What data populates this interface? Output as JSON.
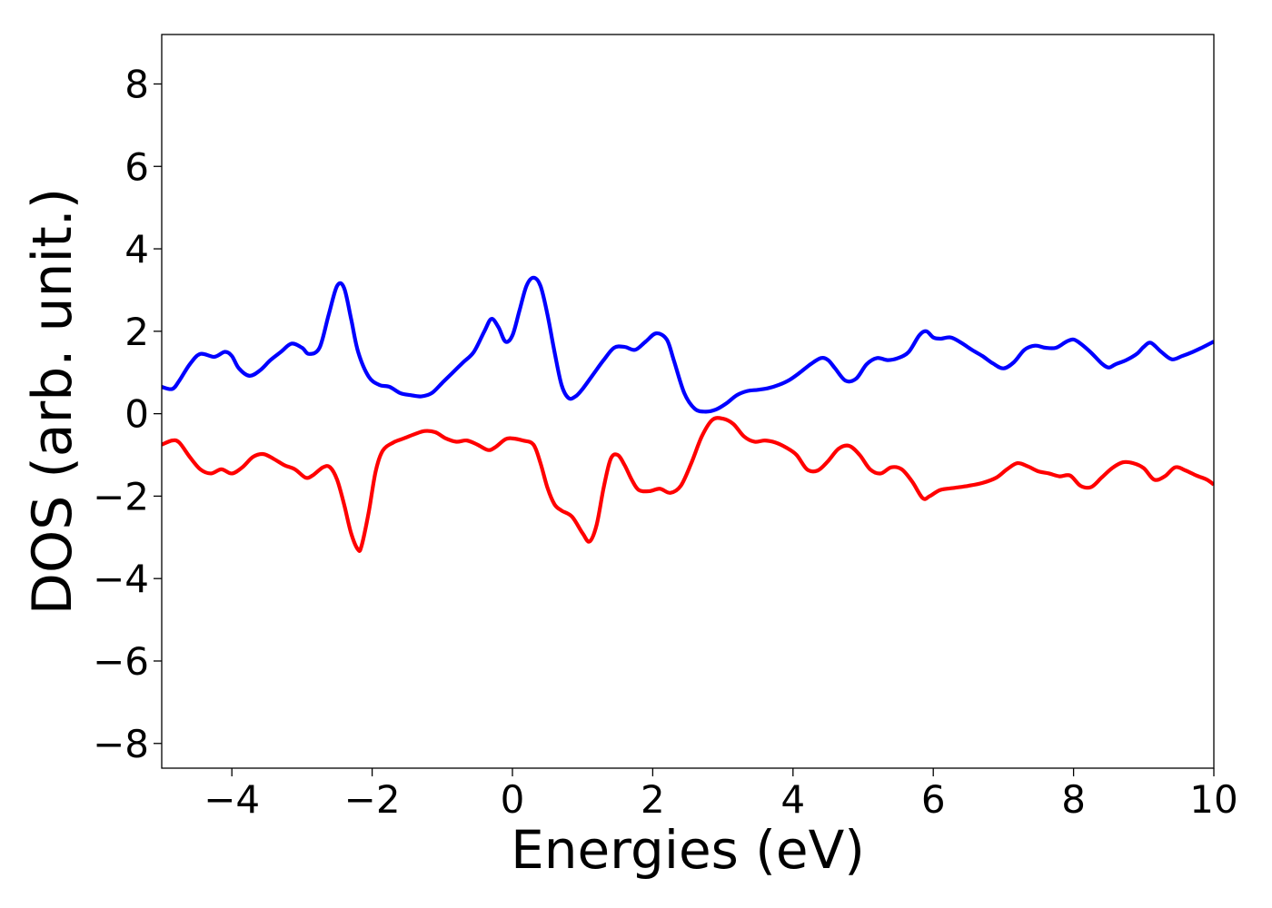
{
  "chart_data": {
    "type": "line",
    "xlabel": "Energies (eV)",
    "ylabel": "DOS (arb. unit.)",
    "xlim": [
      -5,
      10
    ],
    "ylim": [
      -8.6,
      9.2
    ],
    "xticks": [
      -4,
      -2,
      0,
      2,
      4,
      6,
      8,
      10
    ],
    "xtick_labels": [
      "−4",
      "−2",
      "0",
      "2",
      "4",
      "6",
      "8",
      "10"
    ],
    "yticks": [
      -8,
      -6,
      -4,
      -2,
      0,
      2,
      4,
      6,
      8
    ],
    "ytick_labels": [
      "−8",
      "−6",
      "−4",
      "−2",
      "0",
      "2",
      "4",
      "6",
      "8"
    ],
    "grid": false,
    "legend": "none",
    "series": [
      {
        "color": "#0000ff",
        "x": [
          -5.0,
          -4.85,
          -4.75,
          -4.6,
          -4.45,
          -4.25,
          -4.1,
          -4.0,
          -3.9,
          -3.75,
          -3.6,
          -3.45,
          -3.3,
          -3.15,
          -3.0,
          -2.9,
          -2.75,
          -2.62,
          -2.5,
          -2.4,
          -2.3,
          -2.2,
          -2.05,
          -1.9,
          -1.75,
          -1.6,
          -1.45,
          -1.3,
          -1.15,
          -1.0,
          -0.85,
          -0.7,
          -0.55,
          -0.4,
          -0.3,
          -0.2,
          -0.1,
          0.0,
          0.1,
          0.2,
          0.3,
          0.4,
          0.5,
          0.6,
          0.7,
          0.8,
          0.9,
          1.0,
          1.15,
          1.3,
          1.45,
          1.6,
          1.75,
          1.9,
          2.05,
          2.2,
          2.3,
          2.45,
          2.6,
          2.75,
          2.9,
          3.05,
          3.2,
          3.35,
          3.5,
          3.65,
          3.8,
          3.95,
          4.1,
          4.25,
          4.4,
          4.5,
          4.6,
          4.75,
          4.9,
          5.05,
          5.2,
          5.35,
          5.5,
          5.65,
          5.8,
          5.9,
          6.0,
          6.1,
          6.25,
          6.4,
          6.55,
          6.7,
          6.85,
          7.0,
          7.15,
          7.3,
          7.45,
          7.6,
          7.75,
          7.9,
          8.0,
          8.1,
          8.25,
          8.4,
          8.5,
          8.6,
          8.75,
          8.9,
          9.0,
          9.1,
          9.25,
          9.4,
          9.55,
          9.7,
          9.85,
          10.0
        ],
        "y": [
          0.65,
          0.6,
          0.8,
          1.2,
          1.45,
          1.38,
          1.5,
          1.4,
          1.1,
          0.92,
          1.05,
          1.3,
          1.5,
          1.7,
          1.6,
          1.45,
          1.6,
          2.4,
          3.1,
          3.05,
          2.3,
          1.5,
          0.9,
          0.7,
          0.65,
          0.5,
          0.45,
          0.42,
          0.5,
          0.75,
          1.0,
          1.25,
          1.5,
          2.0,
          2.3,
          2.1,
          1.75,
          1.9,
          2.5,
          3.1,
          3.3,
          3.1,
          2.4,
          1.5,
          0.7,
          0.38,
          0.42,
          0.6,
          0.95,
          1.3,
          1.6,
          1.62,
          1.55,
          1.75,
          1.95,
          1.8,
          1.3,
          0.5,
          0.12,
          0.05,
          0.1,
          0.25,
          0.45,
          0.55,
          0.58,
          0.62,
          0.7,
          0.82,
          1.0,
          1.2,
          1.35,
          1.3,
          1.1,
          0.8,
          0.85,
          1.2,
          1.35,
          1.3,
          1.35,
          1.5,
          1.9,
          2.0,
          1.85,
          1.82,
          1.85,
          1.72,
          1.55,
          1.4,
          1.22,
          1.1,
          1.25,
          1.55,
          1.65,
          1.6,
          1.6,
          1.75,
          1.8,
          1.7,
          1.48,
          1.22,
          1.12,
          1.2,
          1.3,
          1.45,
          1.62,
          1.72,
          1.5,
          1.32,
          1.4,
          1.5,
          1.62,
          1.75
        ]
      },
      {
        "color": "#ff0000",
        "x": [
          -5.0,
          -4.85,
          -4.75,
          -4.6,
          -4.45,
          -4.3,
          -4.15,
          -4.0,
          -3.85,
          -3.7,
          -3.55,
          -3.4,
          -3.25,
          -3.1,
          -2.95,
          -2.85,
          -2.7,
          -2.6,
          -2.5,
          -2.4,
          -2.3,
          -2.2,
          -2.15,
          -2.05,
          -1.95,
          -1.85,
          -1.7,
          -1.55,
          -1.4,
          -1.25,
          -1.1,
          -0.95,
          -0.8,
          -0.65,
          -0.5,
          -0.35,
          -0.25,
          -0.1,
          0.0,
          0.15,
          0.3,
          0.4,
          0.5,
          0.6,
          0.7,
          0.85,
          1.0,
          1.1,
          1.2,
          1.3,
          1.4,
          1.5,
          1.6,
          1.7,
          1.8,
          1.95,
          2.1,
          2.25,
          2.4,
          2.55,
          2.7,
          2.85,
          3.0,
          3.15,
          3.3,
          3.45,
          3.6,
          3.75,
          3.9,
          4.05,
          4.2,
          4.35,
          4.5,
          4.65,
          4.8,
          4.95,
          5.1,
          5.25,
          5.4,
          5.55,
          5.7,
          5.85,
          5.95,
          6.1,
          6.3,
          6.5,
          6.7,
          6.9,
          7.05,
          7.2,
          7.35,
          7.5,
          7.65,
          7.8,
          7.95,
          8.1,
          8.25,
          8.4,
          8.55,
          8.7,
          8.85,
          9.0,
          9.15,
          9.3,
          9.45,
          9.6,
          9.75,
          9.9,
          10.0
        ],
        "y": [
          -0.75,
          -0.65,
          -0.7,
          -1.05,
          -1.35,
          -1.45,
          -1.35,
          -1.45,
          -1.3,
          -1.05,
          -0.98,
          -1.1,
          -1.25,
          -1.35,
          -1.55,
          -1.5,
          -1.3,
          -1.3,
          -1.6,
          -2.2,
          -2.9,
          -3.3,
          -3.2,
          -2.4,
          -1.4,
          -0.9,
          -0.7,
          -0.6,
          -0.5,
          -0.42,
          -0.45,
          -0.6,
          -0.68,
          -0.65,
          -0.75,
          -0.88,
          -0.82,
          -0.62,
          -0.6,
          -0.65,
          -0.75,
          -1.2,
          -1.8,
          -2.2,
          -2.35,
          -2.5,
          -2.9,
          -3.1,
          -2.7,
          -1.8,
          -1.1,
          -1.0,
          -1.25,
          -1.6,
          -1.85,
          -1.88,
          -1.82,
          -1.92,
          -1.75,
          -1.2,
          -0.55,
          -0.15,
          -0.12,
          -0.25,
          -0.55,
          -0.68,
          -0.65,
          -0.7,
          -0.82,
          -1.0,
          -1.35,
          -1.38,
          -1.15,
          -0.85,
          -0.78,
          -1.0,
          -1.35,
          -1.45,
          -1.3,
          -1.35,
          -1.65,
          -2.05,
          -2.0,
          -1.85,
          -1.8,
          -1.75,
          -1.68,
          -1.55,
          -1.35,
          -1.2,
          -1.28,
          -1.4,
          -1.45,
          -1.52,
          -1.5,
          -1.75,
          -1.78,
          -1.55,
          -1.32,
          -1.18,
          -1.2,
          -1.32,
          -1.6,
          -1.52,
          -1.3,
          -1.38,
          -1.5,
          -1.6,
          -1.72
        ]
      }
    ]
  }
}
